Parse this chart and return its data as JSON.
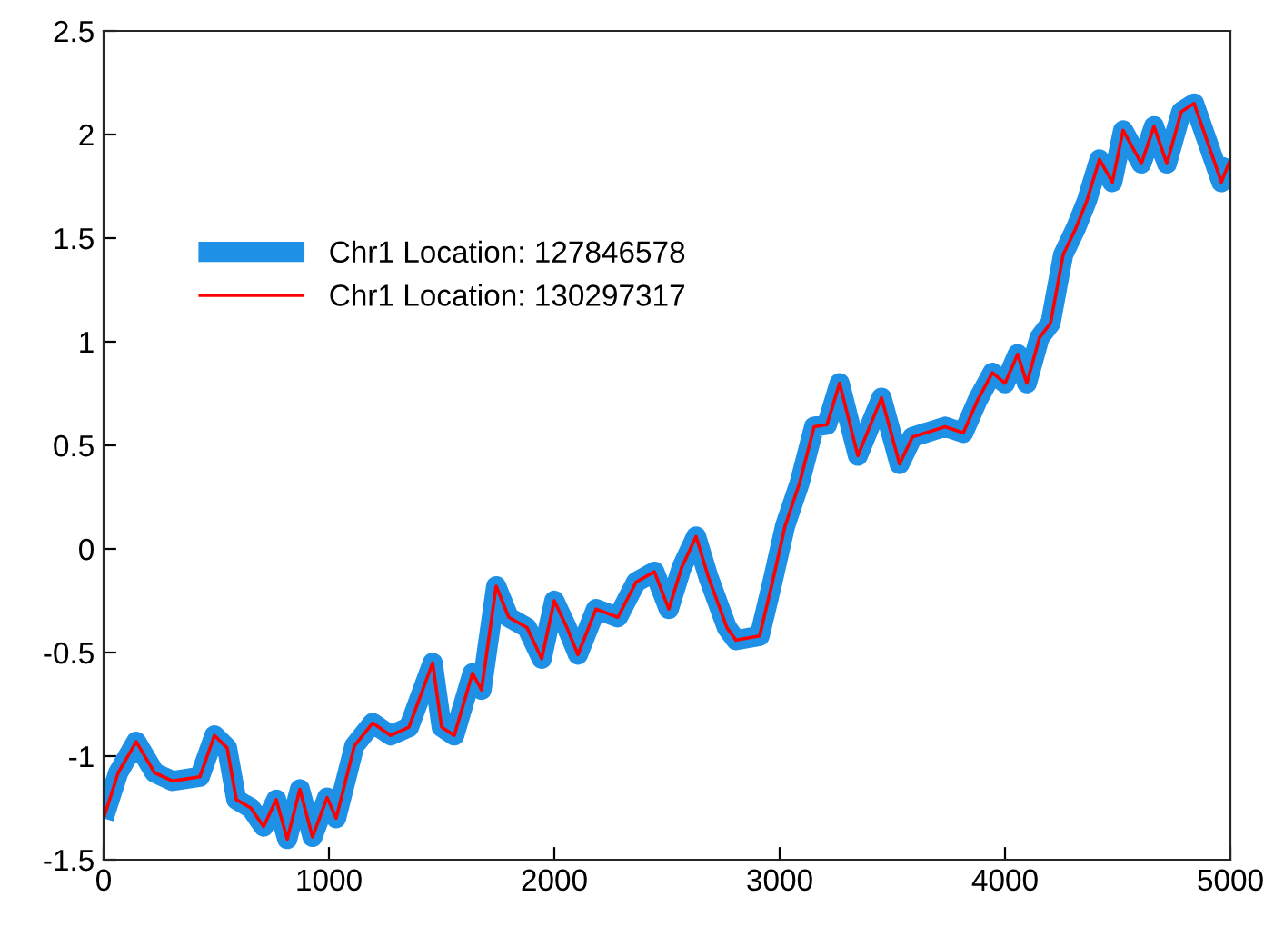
{
  "chart_data": {
    "type": "line",
    "x": [
      0,
      65,
      145,
      226,
      306,
      427,
      492,
      548,
      589,
      653,
      710,
      766,
      815,
      871,
      927,
      992,
      1032,
      1113,
      1194,
      1274,
      1355,
      1460,
      1500,
      1556,
      1637,
      1677,
      1742,
      1798,
      1879,
      1944,
      2000,
      2056,
      2105,
      2185,
      2282,
      2363,
      2444,
      2508,
      2565,
      2629,
      2685,
      2766,
      2806,
      2911,
      2968,
      3024,
      3089,
      3153,
      3210,
      3266,
      3347,
      3452,
      3532,
      3589,
      3734,
      3815,
      3879,
      3944,
      4000,
      4056,
      4097,
      4153,
      4202,
      4258,
      4315,
      4363,
      4419,
      4476,
      4524,
      4605,
      4661,
      4718,
      4782,
      4839,
      4903,
      4960,
      5000
    ],
    "series": [
      {
        "name": "Chr1 Location: 127846578",
        "color": "#1e90e6",
        "values": [
          -1.3,
          -1.08,
          -0.93,
          -1.08,
          -1.12,
          -1.1,
          -0.9,
          -0.96,
          -1.21,
          -1.25,
          -1.34,
          -1.21,
          -1.4,
          -1.16,
          -1.39,
          -1.2,
          -1.3,
          -0.95,
          -0.84,
          -0.9,
          -0.86,
          -0.55,
          -0.86,
          -0.9,
          -0.6,
          -0.68,
          -0.18,
          -0.33,
          -0.38,
          -0.53,
          -0.25,
          -0.38,
          -0.51,
          -0.29,
          -0.33,
          -0.16,
          -0.11,
          -0.29,
          -0.09,
          0.06,
          -0.14,
          -0.38,
          -0.44,
          -0.42,
          -0.16,
          0.11,
          0.32,
          0.59,
          0.6,
          0.8,
          0.45,
          0.73,
          0.41,
          0.54,
          0.59,
          0.56,
          0.72,
          0.85,
          0.8,
          0.94,
          0.8,
          1.02,
          1.09,
          1.42,
          1.55,
          1.68,
          1.88,
          1.77,
          2.02,
          1.86,
          2.04,
          1.86,
          2.11,
          2.15,
          1.95,
          1.77,
          1.88
        ]
      },
      {
        "name": "Chr1 Location: 130297317",
        "color": "#ff0000",
        "values": [
          -1.3,
          -1.08,
          -0.93,
          -1.08,
          -1.12,
          -1.1,
          -0.9,
          -0.96,
          -1.21,
          -1.25,
          -1.34,
          -1.21,
          -1.4,
          -1.16,
          -1.39,
          -1.2,
          -1.3,
          -0.95,
          -0.84,
          -0.9,
          -0.86,
          -0.55,
          -0.86,
          -0.9,
          -0.6,
          -0.68,
          -0.18,
          -0.33,
          -0.38,
          -0.53,
          -0.25,
          -0.38,
          -0.51,
          -0.29,
          -0.33,
          -0.16,
          -0.11,
          -0.29,
          -0.09,
          0.06,
          -0.14,
          -0.38,
          -0.44,
          -0.42,
          -0.16,
          0.11,
          0.32,
          0.59,
          0.6,
          0.8,
          0.45,
          0.73,
          0.41,
          0.54,
          0.59,
          0.56,
          0.72,
          0.85,
          0.8,
          0.94,
          0.8,
          1.02,
          1.09,
          1.42,
          1.55,
          1.68,
          1.88,
          1.77,
          2.02,
          1.86,
          2.04,
          1.86,
          2.11,
          2.15,
          1.95,
          1.77,
          1.88
        ]
      }
    ],
    "xlim": [
      0,
      5000
    ],
    "xticks": [
      0,
      1000,
      2000,
      3000,
      4000,
      5000
    ],
    "ylim": [
      -1.5,
      2.5
    ],
    "yticks": [
      -1.5,
      -1,
      -0.5,
      0,
      0.5,
      1,
      1.5,
      2,
      2.5
    ],
    "grid": false,
    "legend": "top left",
    "marker": "none",
    "line_style": "solid"
  }
}
